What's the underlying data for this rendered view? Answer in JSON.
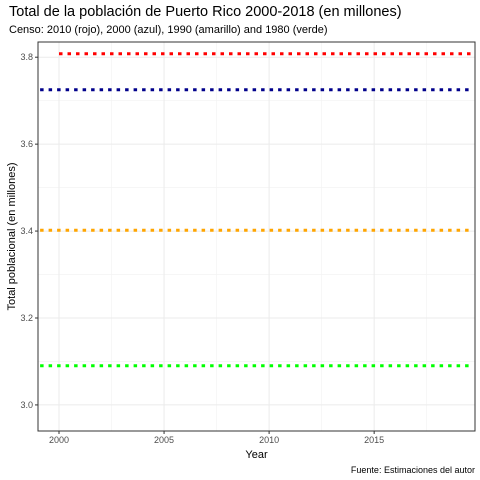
{
  "chart_data": {
    "type": "line",
    "title": "Total de la población de Puerto Rico 2000-2018 (en millones)",
    "subtitle": "Censo: 2010 (rojo), 2000 (azul), 1990 (amarillo) and 1980 (verde)",
    "xlabel": "Year",
    "ylabel": "Total poblacional (en millones)",
    "caption": "Fuente: Estimaciones del autor",
    "xlim": [
      1999.0,
      2019.8
    ],
    "ylim": [
      2.94,
      3.835
    ],
    "x_ticks": [
      2000,
      2005,
      2010,
      2015
    ],
    "y_ticks": [
      3.0,
      3.2,
      3.4,
      3.6,
      3.8
    ],
    "y_tick_labels": [
      "3.0",
      "3.2",
      "3.4",
      "3.6",
      "3.8"
    ],
    "grid": true,
    "series": [
      {
        "color": "#ff0000",
        "style": "dotted",
        "x": [
          2000,
          2019.6
        ],
        "values": [
          3.808,
          3.808
        ]
      },
      {
        "color": "#00008b",
        "style": "dotted",
        "x": [
          1999.1,
          2019.6
        ],
        "values": [
          3.725,
          3.725
        ]
      },
      {
        "color": "#ffa500",
        "style": "dotted",
        "x": [
          1999.1,
          2019.6
        ],
        "values": [
          3.402,
          3.402
        ]
      },
      {
        "color": "#00ff00",
        "style": "dotted",
        "x": [
          1999.1,
          2019.6
        ],
        "values": [
          3.09,
          3.09
        ]
      }
    ]
  }
}
